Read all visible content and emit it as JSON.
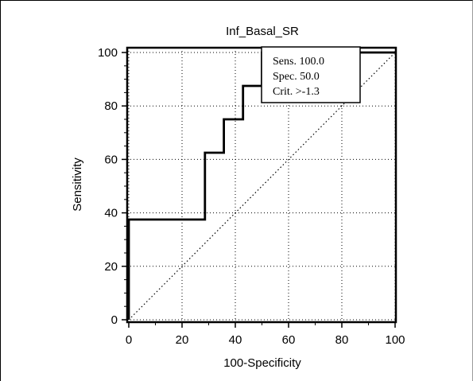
{
  "chart_data": {
    "type": "line",
    "title": "Inf_Basal_SR",
    "xlabel": "100-Specificity",
    "ylabel": "Sensitivity",
    "xlim": [
      0,
      100
    ],
    "ylim": [
      0,
      100
    ],
    "xticks": [
      0,
      20,
      40,
      60,
      80,
      100
    ],
    "yticks": [
      0,
      20,
      40,
      60,
      80,
      100
    ],
    "grid": true,
    "series": [
      {
        "style": "step",
        "x": [
          0,
          0,
          28.6,
          28.6,
          35.7,
          35.7,
          42.9,
          42.9,
          50,
          50,
          100
        ],
        "y": [
          0,
          37.5,
          37.5,
          62.5,
          62.5,
          75,
          75,
          87.5,
          87.5,
          100,
          100
        ]
      },
      {
        "style": "dotted-diagonal",
        "x": [
          0,
          100
        ],
        "y": [
          0,
          100
        ]
      }
    ],
    "annotation": {
      "placement": "top-right",
      "lines": [
        "Sens. 100.0",
        "Spec. 50.0",
        "Crit. >-1.3"
      ]
    }
  }
}
